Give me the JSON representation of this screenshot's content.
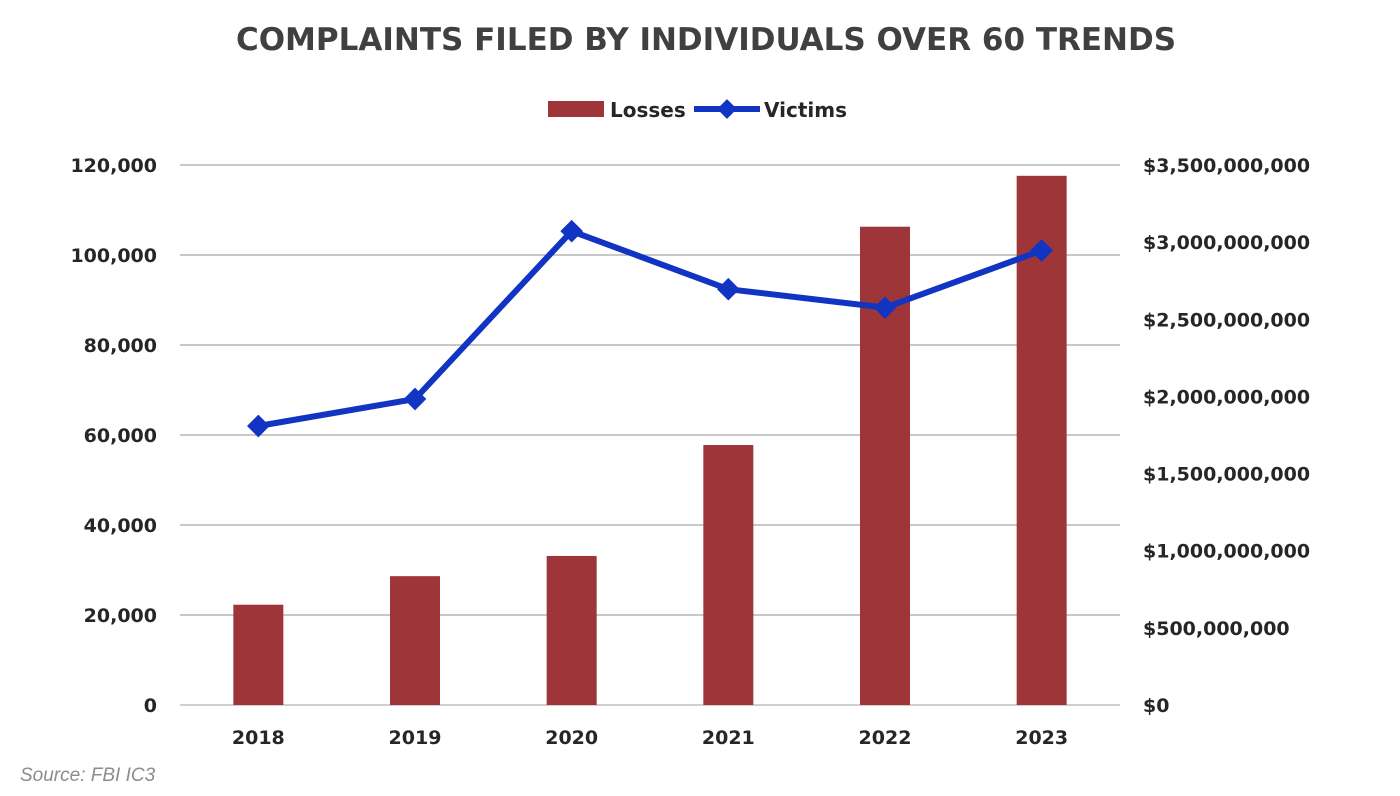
{
  "chart_data": {
    "type": "bar",
    "title": "COMPLAINTS FILED BY INDIVIDUALS OVER 60 TRENDS",
    "categories": [
      "2018",
      "2019",
      "2020",
      "2021",
      "2022",
      "2023"
    ],
    "series": [
      {
        "name": "Losses",
        "type": "bar",
        "axis": "right",
        "color": "#9e3538",
        "values": [
          650000000,
          835000000,
          966000000,
          1685000000,
          3100000000,
          3430000000
        ]
      },
      {
        "name": "Victims",
        "type": "line",
        "axis": "left",
        "color": "#1234c2",
        "marker": "diamond",
        "values": [
          62000,
          68000,
          105300,
          92400,
          88300,
          101000
        ]
      }
    ],
    "y_left": {
      "lim": [
        0,
        120000
      ],
      "ticks": [
        "0",
        "20,000",
        "40,000",
        "60,000",
        "80,000",
        "100,000",
        "120,000"
      ]
    },
    "y_right": {
      "lim": [
        0,
        3500000000
      ],
      "ticks": [
        "$0",
        "$500,000,000",
        "$1,000,000,000",
        "$1,500,000,000",
        "$2,000,000,000",
        "$2,500,000,000",
        "$3,000,000,000",
        "$3,500,000,000"
      ]
    },
    "grid": true,
    "legend_position": "top-center",
    "source": "Source: FBI IC3"
  }
}
